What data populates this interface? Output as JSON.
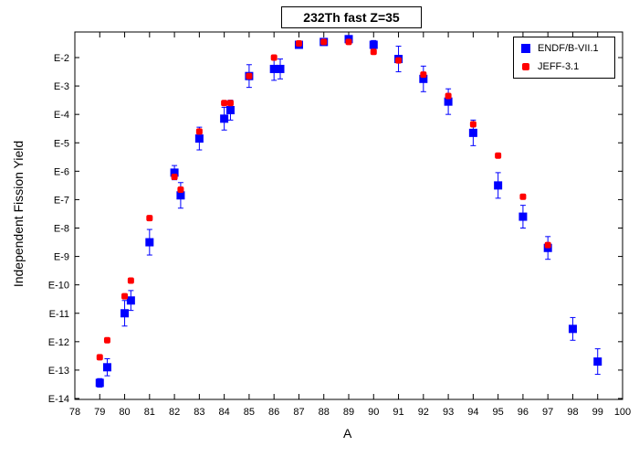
{
  "chart_data": {
    "type": "scatter",
    "title": "232Th fast Z=35",
    "xlabel": "A",
    "ylabel": "Independent Fission Yield",
    "xlim": [
      78,
      100
    ],
    "xticks": [
      "78",
      "79",
      "80",
      "81",
      "82",
      "83",
      "84",
      "85",
      "86",
      "87",
      "88",
      "89",
      "90",
      "91",
      "92",
      "93",
      "94",
      "95",
      "96",
      "97",
      "98",
      "99",
      "100"
    ],
    "ylim_exponent": [
      -14,
      -1.5
    ],
    "yscale": "log",
    "yticks": [
      "E-2",
      "E-3",
      "E-4",
      "E-5",
      "E-6",
      "E-7",
      "E-8",
      "E-9",
      "E-10",
      "E-11",
      "E-12",
      "E-13",
      "E-14"
    ],
    "legend_position": "top-right",
    "series": [
      {
        "name": "ENDF/B-VII.1",
        "color": "#0000ff",
        "marker": "square",
        "points": [
          {
            "x": 79.0,
            "exp": -13.45,
            "err": 0.15
          },
          {
            "x": 79.3,
            "exp": -12.9,
            "err": 0.3
          },
          {
            "x": 80.0,
            "exp": -11.0,
            "err": 0.45
          },
          {
            "x": 80.25,
            "exp": -10.55,
            "err": 0.35
          },
          {
            "x": 81.0,
            "exp": -8.5,
            "err": 0.45
          },
          {
            "x": 82.0,
            "exp": -6.05,
            "err": 0.25
          },
          {
            "x": 82.25,
            "exp": -6.85,
            "err": 0.45
          },
          {
            "x": 83.0,
            "exp": -4.85,
            "err": 0.4
          },
          {
            "x": 84.0,
            "exp": -4.15,
            "err": 0.4
          },
          {
            "x": 84.25,
            "exp": -3.85,
            "err": 0.35
          },
          {
            "x": 85.0,
            "exp": -2.65,
            "err": 0.4
          },
          {
            "x": 86.0,
            "exp": -2.4,
            "err": 0.4
          },
          {
            "x": 86.25,
            "exp": -2.4,
            "err": 0.35
          },
          {
            "x": 87.0,
            "exp": -1.55,
            "err": 0.1
          },
          {
            "x": 88.0,
            "exp": -1.45,
            "err": 0.1
          },
          {
            "x": 89.0,
            "exp": -1.35,
            "err": 0.1
          },
          {
            "x": 90.0,
            "exp": -1.55,
            "err": 0.15
          },
          {
            "x": 91.0,
            "exp": -2.05,
            "err": 0.45
          },
          {
            "x": 92.0,
            "exp": -2.75,
            "err": 0.45
          },
          {
            "x": 93.0,
            "exp": -3.55,
            "err": 0.45
          },
          {
            "x": 94.0,
            "exp": -4.65,
            "err": 0.45
          },
          {
            "x": 95.0,
            "exp": -6.5,
            "err": 0.45
          },
          {
            "x": 96.0,
            "exp": -7.6,
            "err": 0.4
          },
          {
            "x": 97.0,
            "exp": -8.7,
            "err": 0.4
          },
          {
            "x": 98.0,
            "exp": -11.55,
            "err": 0.4
          },
          {
            "x": 99.0,
            "exp": -12.7,
            "err": 0.45
          }
        ]
      },
      {
        "name": "JEFF-3.1",
        "color": "#ff0000",
        "marker": "square",
        "points": [
          {
            "x": 79.0,
            "exp": -12.55
          },
          {
            "x": 79.3,
            "exp": -11.95
          },
          {
            "x": 80.0,
            "exp": -10.4
          },
          {
            "x": 80.25,
            "exp": -9.85
          },
          {
            "x": 81.0,
            "exp": -7.65
          },
          {
            "x": 82.0,
            "exp": -6.2
          },
          {
            "x": 82.25,
            "exp": -6.65
          },
          {
            "x": 83.0,
            "exp": -4.6
          },
          {
            "x": 84.0,
            "exp": -3.6
          },
          {
            "x": 84.25,
            "exp": -3.6
          },
          {
            "x": 85.0,
            "exp": -2.65
          },
          {
            "x": 86.0,
            "exp": -2.0
          },
          {
            "x": 87.0,
            "exp": -1.5
          },
          {
            "x": 88.0,
            "exp": -1.45
          },
          {
            "x": 89.0,
            "exp": -1.45
          },
          {
            "x": 90.0,
            "exp": -1.8
          },
          {
            "x": 91.0,
            "exp": -2.1
          },
          {
            "x": 92.0,
            "exp": -2.6
          },
          {
            "x": 93.0,
            "exp": -3.35
          },
          {
            "x": 94.0,
            "exp": -4.35
          },
          {
            "x": 95.0,
            "exp": -5.45
          },
          {
            "x": 96.0,
            "exp": -6.9
          },
          {
            "x": 97.0,
            "exp": -8.6
          }
        ]
      }
    ]
  }
}
